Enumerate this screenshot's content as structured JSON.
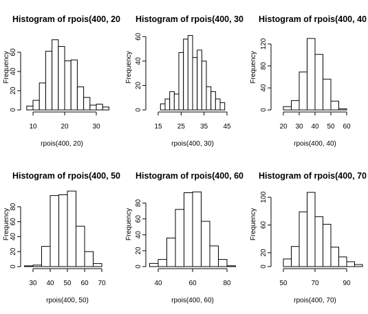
{
  "chart_data": [
    {
      "type": "bar",
      "title": "Histogram of rpois(400, 20",
      "xlabel": "rpois(400, 20)",
      "ylabel": "Frequency",
      "x_ticks": [
        10,
        20,
        30
      ],
      "y_ticks": [
        0,
        20,
        40,
        60
      ],
      "xlim": [
        6,
        36
      ],
      "ylim": [
        0,
        80
      ],
      "bin_edges": [
        8,
        10,
        12,
        14,
        16,
        18,
        20,
        22,
        24,
        26,
        28,
        30,
        32,
        34
      ],
      "values": [
        4,
        10,
        28,
        61,
        73,
        66,
        51,
        52,
        24,
        13,
        5,
        6,
        3
      ]
    },
    {
      "type": "bar",
      "title": "Histogram of rpois(400, 30",
      "xlabel": "rpois(400, 30)",
      "ylabel": "Frequency",
      "x_ticks": [
        15,
        25,
        35,
        45
      ],
      "y_ticks": [
        0,
        20,
        40,
        60
      ],
      "xlim": [
        15,
        45
      ],
      "ylim": [
        0,
        63
      ],
      "bin_edges": [
        16,
        18,
        20,
        22,
        24,
        26,
        28,
        30,
        32,
        34,
        36,
        38,
        40,
        42,
        44
      ],
      "values": [
        5,
        9,
        15,
        13,
        47,
        58,
        61,
        43,
        49,
        40,
        19,
        15,
        9,
        6
      ]
    },
    {
      "type": "bar",
      "title": "Histogram of rpois(400, 40",
      "xlabel": "rpois(400, 40)",
      "ylabel": "Frequency",
      "x_ticks": [
        20,
        30,
        40,
        50,
        60
      ],
      "y_ticks": [
        0,
        40,
        80,
        120
      ],
      "xlim": [
        20,
        60
      ],
      "ylim": [
        0,
        140
      ],
      "bin_edges": [
        20,
        25,
        30,
        35,
        40,
        45,
        50,
        55,
        60
      ],
      "values": [
        6,
        17,
        69,
        130,
        101,
        56,
        16,
        2
      ]
    },
    {
      "type": "bar",
      "title": "Histogram of rpois(400, 50",
      "xlabel": "rpois(400, 50)",
      "ylabel": "Frequency",
      "x_ticks": [
        30,
        40,
        50,
        60,
        70
      ],
      "y_ticks": [
        0,
        20,
        40,
        60,
        80
      ],
      "xlim": [
        25,
        70
      ],
      "ylim": [
        0,
        102
      ],
      "bin_edges": [
        25,
        30,
        35,
        40,
        45,
        50,
        55,
        60,
        65,
        70
      ],
      "values": [
        1,
        2,
        27,
        95,
        96,
        101,
        54,
        20,
        4
      ]
    },
    {
      "type": "bar",
      "title": "Histogram of rpois(400, 60",
      "xlabel": "rpois(400, 60)",
      "ylabel": "Frequency",
      "x_ticks": [
        40,
        60,
        80
      ],
      "y_ticks": [
        0,
        20,
        40,
        60,
        80
      ],
      "xlim": [
        35,
        85
      ],
      "ylim": [
        0,
        96
      ],
      "bin_edges": [
        35,
        40,
        45,
        50,
        55,
        60,
        65,
        70,
        75,
        80,
        85
      ],
      "values": [
        4,
        9,
        36,
        72,
        93,
        94,
        57,
        26,
        9,
        1
      ]
    },
    {
      "type": "bar",
      "title": "Histogram of rpois(400, 70",
      "xlabel": "rpois(400, 70)",
      "ylabel": "Frequency",
      "x_ticks": [
        50,
        70,
        90
      ],
      "y_ticks": [
        0,
        20,
        60,
        100
      ],
      "xlim": [
        50,
        100
      ],
      "ylim": [
        0,
        110
      ],
      "bin_edges": [
        50,
        55,
        60,
        65,
        70,
        75,
        80,
        85,
        90,
        95,
        100
      ],
      "values": [
        11,
        29,
        79,
        107,
        72,
        61,
        28,
        14,
        7,
        3
      ]
    }
  ]
}
